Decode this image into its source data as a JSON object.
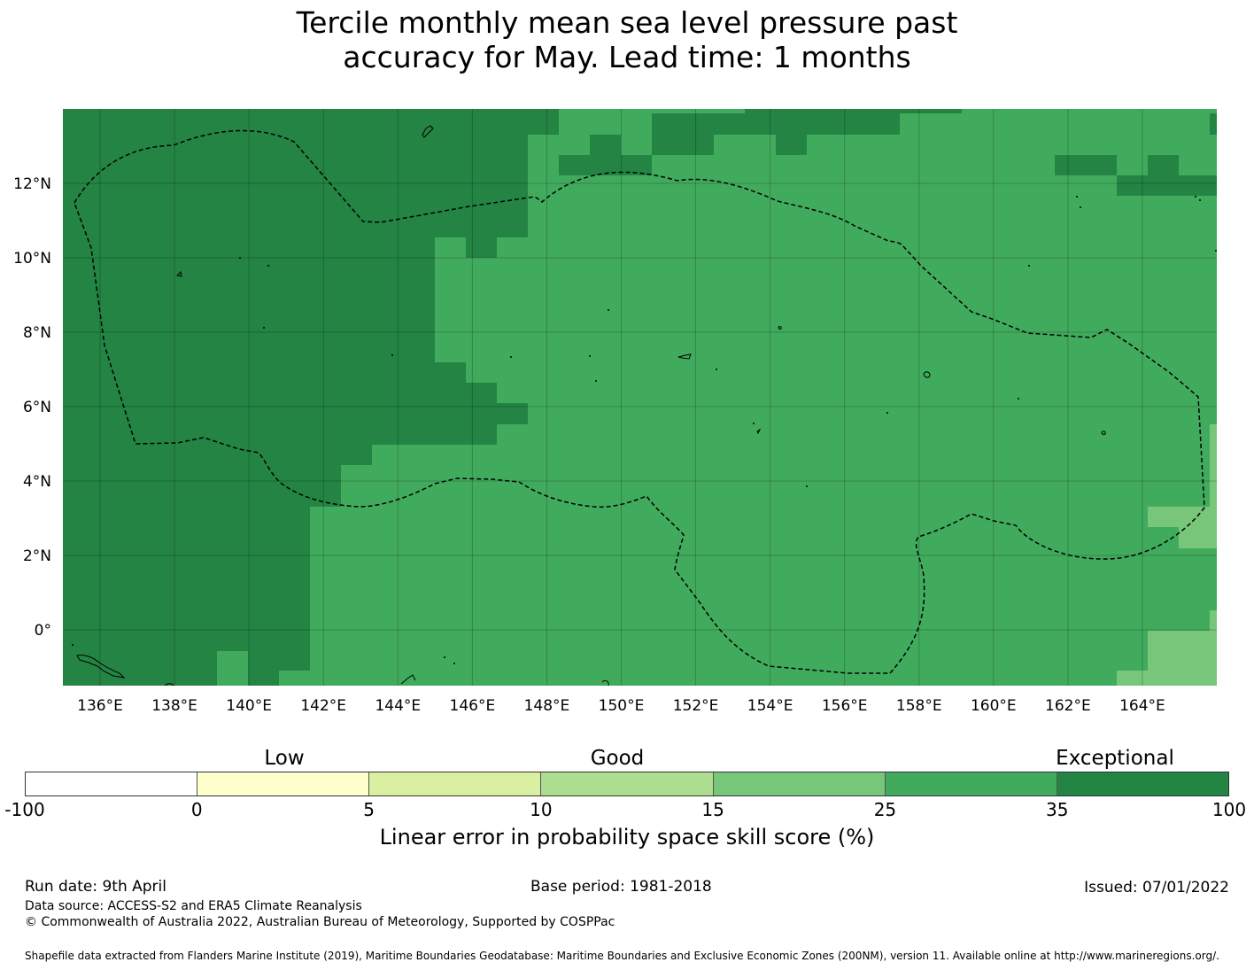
{
  "title_lines": [
    "Tercile monthly mean sea level pressure past",
    "accuracy for May. Lead time: 1 months"
  ],
  "map": {
    "lon_range": [
      135.0,
      166.0
    ],
    "lat_range": [
      -1.5,
      14.0
    ],
    "x_ticks": [
      "136°E",
      "138°E",
      "140°E",
      "142°E",
      "144°E",
      "146°E",
      "148°E",
      "150°E",
      "152°E",
      "154°E",
      "156°E",
      "158°E",
      "160°E",
      "162°E",
      "164°E"
    ],
    "y_ticks": [
      "0°",
      "2°N",
      "4°N",
      "6°N",
      "8°N",
      "10°N",
      "12°N"
    ],
    "colors": {
      "exceptional": "#238443",
      "very_good": "#41ab5d",
      "good": "#78c679",
      "border": "#000000"
    }
  },
  "colorbar": {
    "ticks": [
      "-100",
      "0",
      "5",
      "10",
      "15",
      "25",
      "35",
      "100"
    ],
    "colors": [
      "#ffffff",
      "#ffffcc",
      "#d9f0a3",
      "#addd8e",
      "#78c679",
      "#41ab5d",
      "#238443"
    ],
    "categories": [
      "Low",
      "Good",
      "Exceptional"
    ],
    "title": "Linear error in probability space skill score (%)"
  },
  "footer": {
    "run_date": "Run date: 9th April",
    "base_period": "Base period: 1981-2018",
    "issued": "Issued: 07/01/2022",
    "data_source": "Data source: ACCESS-S2 and ERA5 Climate Reanalysis",
    "copyright": "© Commonwealth of Australia 2022, Australian Bureau of Meteorology, Supported by COSPPac",
    "shapefile": "Shapefile data extracted from Flanders Marine Institute (2019), Maritime Boundaries Geodatabase: Maritime Boundaries and Exclusive Economic Zones (200NM), version 11. Available online at http://www.marineregions.org/."
  }
}
